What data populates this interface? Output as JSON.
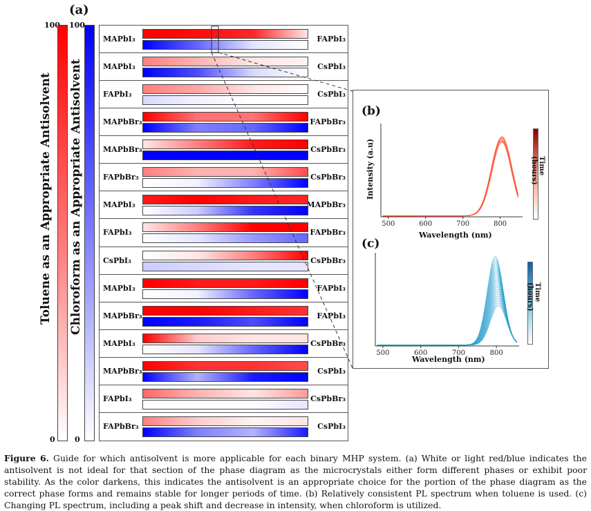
{
  "panel_a_label": "(a)",
  "scale_left": {
    "top": "100",
    "bottom": "0",
    "title": "Toluene as an Appropriate Antisolvent",
    "color": "#ff0000"
  },
  "scale_right": {
    "top": "100",
    "bottom": "0",
    "title": "Chloroform as an Appropriate Antisolvent",
    "color": "#0000ff"
  },
  "rows": [
    {
      "left": "MAPbI₃",
      "right": "FAPbI₃",
      "red": [
        1,
        0.95,
        0.85,
        0.1
      ],
      "blue": [
        1,
        0.6,
        0.1,
        0.0
      ]
    },
    {
      "left": "MAPbI₃",
      "right": "CsPbI₃",
      "red": [
        0.5,
        0.3,
        0.1,
        0.05
      ],
      "blue": [
        1,
        0.7,
        0.15,
        0.0
      ]
    },
    {
      "left": "FAPbI₃",
      "right": "CsPbI₃",
      "red": [
        0.5,
        0.35,
        0.1,
        0.0
      ],
      "blue": [
        0.15,
        0.05,
        0.0,
        0.0
      ]
    },
    {
      "left": "MAPbBr₃",
      "right": "FAPbBr₃",
      "red": [
        1,
        0.55,
        0.55,
        1
      ],
      "blue": [
        1,
        0.5,
        0.6,
        1
      ]
    },
    {
      "left": "MAPbBr₃",
      "right": "CsPbBr₃",
      "red": [
        0.1,
        0.5,
        0.9,
        1
      ],
      "blue": [
        1,
        1,
        1,
        1
      ]
    },
    {
      "left": "FAPbBr₃",
      "right": "CsPbBr₃",
      "red": [
        0.5,
        0.3,
        0.3,
        0.7
      ],
      "blue": [
        0.0,
        0.05,
        0.5,
        1
      ]
    },
    {
      "left": "MAPbI₃",
      "right": "MAPbBr₃",
      "red": [
        0.9,
        1,
        0.9,
        0.85
      ],
      "blue": [
        0.0,
        0.2,
        0.8,
        1
      ]
    },
    {
      "left": "FAPbI₃",
      "right": "FAPbBr₃",
      "red": [
        0.1,
        0.5,
        1,
        1
      ],
      "blue": [
        0.0,
        0.1,
        0.4,
        0.6
      ]
    },
    {
      "left": "CsPbI₃",
      "right": "CsPbBr₃",
      "red": [
        0.0,
        0.1,
        0.5,
        1
      ],
      "blue": [
        0.2,
        0.15,
        0.1,
        0.1
      ]
    },
    {
      "left": "MAPbI₃",
      "right": "FAPbI₃",
      "red": [
        1,
        0.9,
        0.9,
        1
      ],
      "blue": [
        0.0,
        0.05,
        0.6,
        1
      ]
    },
    {
      "left": "MAPbBr₃",
      "right": "FAPbI₃",
      "red": [
        1,
        1,
        0.9,
        0.8
      ],
      "blue": [
        1,
        0.9,
        0.7,
        1
      ]
    },
    {
      "left": "MAPbI₃",
      "right": "CsPbBr₃",
      "red": [
        1,
        0.2,
        0.1,
        0.1
      ],
      "blue": [
        0.0,
        0.1,
        0.6,
        1
      ]
    },
    {
      "left": "MAPbBr₃",
      "right": "CsPbI₃",
      "red": [
        1,
        0.8,
        0.8,
        0.7
      ],
      "blue": [
        1,
        0.3,
        0.9,
        1
      ]
    },
    {
      "left": "FAPbI₃",
      "right": "CsPbBr₃",
      "red": [
        0.6,
        0.3,
        0.1,
        0.4
      ],
      "blue": [
        0.0,
        0.0,
        0.0,
        0.1
      ]
    },
    {
      "left": "FAPbBr₃",
      "right": "CsPbI₃",
      "red": [
        0.5,
        0.2,
        0.05,
        0.1
      ],
      "blue": [
        1,
        0.5,
        0.3,
        0.9
      ]
    }
  ],
  "panel_b": {
    "label": "(b)",
    "xlabel": "Wavelength (nm)",
    "ylabel": "Intensity (a.u)",
    "colorbar_label": "Time (hours)",
    "xticks": [
      "500",
      "600",
      "700",
      "800"
    ],
    "color": "#ff5030"
  },
  "panel_c": {
    "label": "(c)",
    "xlabel": "Wavelength (nm)",
    "colorbar_label": "Time (hours)",
    "xticks": [
      "500",
      "600",
      "700",
      "800"
    ],
    "color": "#2aa0d0"
  },
  "caption": {
    "label": "Figure 6.",
    "text": "Guide for which antisolvent is more applicable for each binary MHP system. (a) White or light red/blue indicates the antisolvent is not ideal for that section of the phase diagram as the microcrystals either form different phases or exhibit poor stability. As the color darkens, this indicates the antisolvent is an appropriate choice for the portion of the phase diagram as the correct phase forms and remains stable for longer periods of time. (b) Relatively consistent PL spectrum when toluene is used. (c) Changing PL spectrum, including a peak shift and decrease in intensity, when chloroform is utilized."
  }
}
